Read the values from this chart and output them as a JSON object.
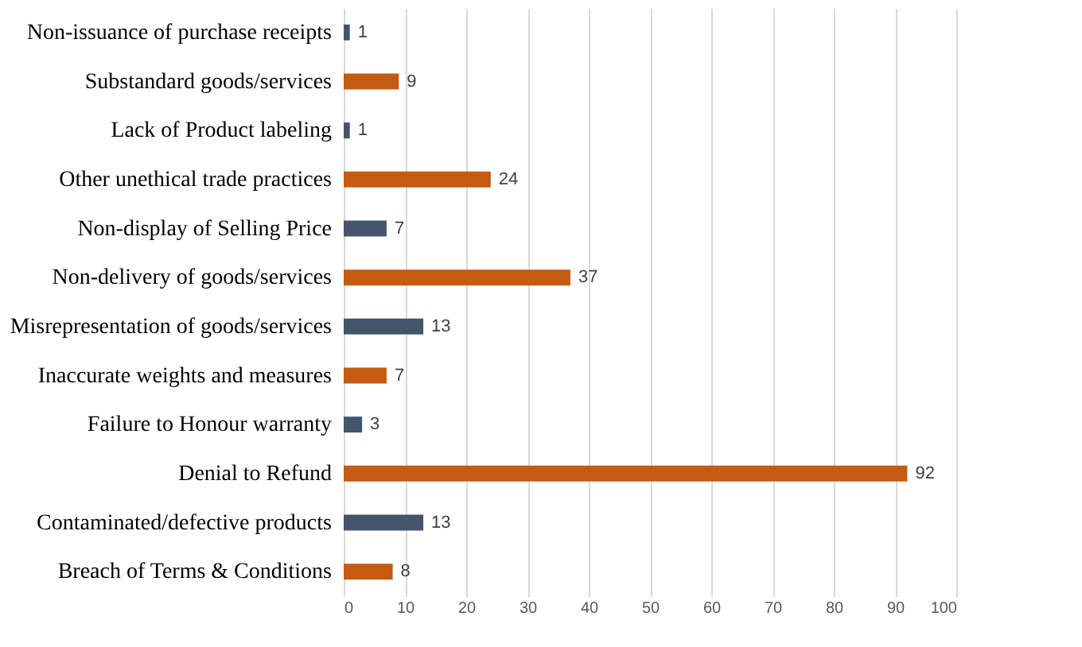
{
  "chart_data": {
    "type": "bar",
    "orientation": "horizontal",
    "categories": [
      "Non-issuance of purchase receipts",
      "Substandard goods/services",
      "Lack of Product labeling",
      "Other unethical trade practices",
      "Non-display of Selling Price",
      "Non-delivery of goods/services",
      "Misrepresentation of goods/services",
      "Inaccurate weights and measures",
      "Failure to Honour warranty",
      "Denial to Refund",
      "Contaminated/defective products",
      "Breach of Terms & Conditions"
    ],
    "values": [
      1,
      9,
      1,
      24,
      7,
      37,
      13,
      7,
      3,
      92,
      13,
      8
    ],
    "colors": [
      "#44546a",
      "#c55a11",
      "#44546a",
      "#c55a11",
      "#44546a",
      "#c55a11",
      "#44546a",
      "#c55a11",
      "#44546a",
      "#c55a11",
      "#44546a",
      "#c55a11"
    ],
    "xlim": [
      0,
      100
    ],
    "xticks": [
      0,
      10,
      20,
      30,
      40,
      50,
      60,
      70,
      80,
      90,
      100
    ],
    "grid": "x",
    "data_labels": true
  }
}
